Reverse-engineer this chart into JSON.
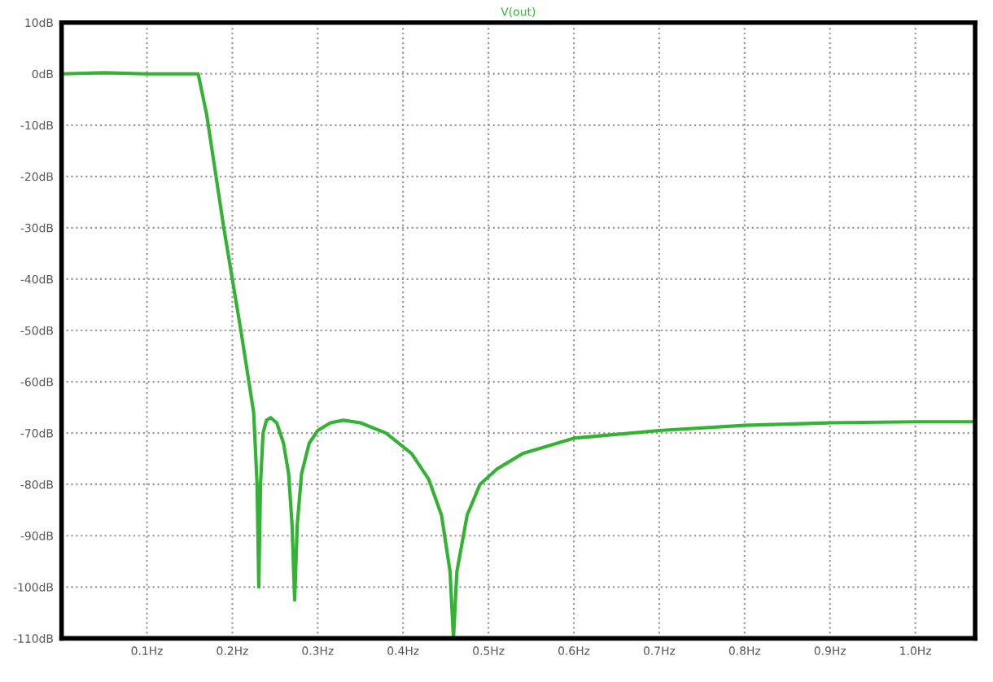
{
  "chart_data": {
    "type": "line",
    "title": "V(out)",
    "x": [
      0,
      0.05,
      0.1,
      0.16,
      0.17,
      0.19,
      0.21,
      0.225,
      0.229,
      0.231,
      0.233,
      0.236,
      0.24,
      0.245,
      0.252,
      0.26,
      0.266,
      0.27,
      0.273,
      0.276,
      0.281,
      0.29,
      0.3,
      0.315,
      0.33,
      0.35,
      0.38,
      0.41,
      0.43,
      0.445,
      0.455,
      0.459,
      0.463,
      0.475,
      0.49,
      0.51,
      0.54,
      0.6,
      0.7,
      0.8,
      0.9,
      1.0,
      1.07
    ],
    "series": [
      {
        "color": "#33b333",
        "values": [
          0,
          0.2,
          0,
          0,
          -8,
          -30,
          -50,
          -66,
          -80,
          -100,
          -80,
          -70,
          -67.5,
          -67,
          -68,
          -72,
          -78,
          -88,
          -102.5,
          -88,
          -78,
          -72,
          -69.5,
          -68,
          -67.5,
          -68,
          -70,
          -74,
          -79,
          -86,
          -97,
          -110,
          -97,
          -86,
          -80,
          -77,
          -74,
          -71,
          -69.5,
          -68.5,
          -68,
          -67.8,
          -67.8
        ]
      }
    ],
    "xlim": [
      0,
      1.07
    ],
    "xticks": [
      {
        "value": 0.1,
        "label": "0.1Hz"
      },
      {
        "value": 0.2,
        "label": "0.2Hz"
      },
      {
        "value": 0.3,
        "label": "0.3Hz"
      },
      {
        "value": 0.4,
        "label": "0.4Hz"
      },
      {
        "value": 0.5,
        "label": "0.5Hz"
      },
      {
        "value": 0.6,
        "label": "0.6Hz"
      },
      {
        "value": 0.7,
        "label": "0.7Hz"
      },
      {
        "value": 0.8,
        "label": "0.8Hz"
      },
      {
        "value": 0.9,
        "label": "0.9Hz"
      },
      {
        "value": 1.0,
        "label": "1.0Hz"
      }
    ],
    "ylim": [
      -110,
      10
    ],
    "yticks": [
      {
        "value": 10,
        "label": "10dB"
      },
      {
        "value": 0,
        "label": "0dB"
      },
      {
        "value": -10,
        "label": "-10dB"
      },
      {
        "value": -20,
        "label": "-20dB"
      },
      {
        "value": -30,
        "label": "-30dB"
      },
      {
        "value": -40,
        "label": "-40dB"
      },
      {
        "value": -50,
        "label": "-50dB"
      },
      {
        "value": -60,
        "label": "-60dB"
      },
      {
        "value": -70,
        "label": "-70dB"
      },
      {
        "value": -80,
        "label": "-80dB"
      },
      {
        "value": -90,
        "label": "-90dB"
      },
      {
        "value": -100,
        "label": "-100dB"
      },
      {
        "value": -110,
        "label": "-110dB"
      }
    ],
    "grid": true,
    "line_style": "solid"
  }
}
